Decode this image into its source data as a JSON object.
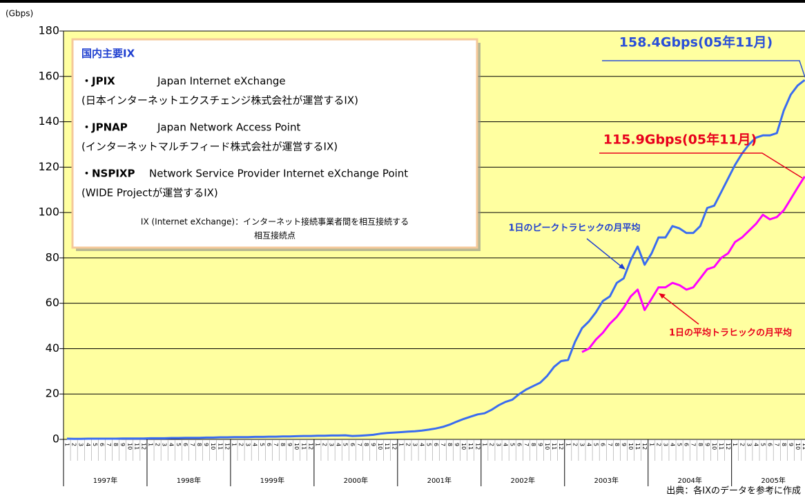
{
  "chart_data": {
    "type": "line",
    "unit_label": "(Gbps)",
    "categories": [
      "1",
      "2",
      "3",
      "4",
      "5",
      "6",
      "7",
      "8",
      "9",
      "10",
      "11",
      "12",
      "1",
      "2",
      "3",
      "4",
      "5",
      "6",
      "7",
      "8",
      "9",
      "10",
      "11",
      "12",
      "1",
      "2",
      "3",
      "4",
      "5",
      "6",
      "7",
      "8",
      "9",
      "10",
      "11",
      "12",
      "1",
      "2",
      "3",
      "4",
      "5",
      "6",
      "7",
      "8",
      "9",
      "10",
      "11",
      "12",
      "1",
      "2",
      "3",
      "4",
      "5",
      "6",
      "7",
      "8",
      "9",
      "10",
      "11",
      "12",
      "1",
      "2",
      "3",
      "4",
      "5",
      "6",
      "7",
      "8",
      "9",
      "10",
      "11",
      "12",
      "1",
      "2",
      "3",
      "4",
      "5",
      "6",
      "7",
      "8",
      "9",
      "10",
      "11",
      "12",
      "1",
      "2",
      "3",
      "4",
      "5",
      "6",
      "7",
      "8",
      "9",
      "10",
      "11",
      "12",
      "1",
      "2",
      "3",
      "4",
      "5",
      "6",
      "7",
      "8",
      "9",
      "10",
      "11"
    ],
    "years": [
      "1997年",
      "1998年",
      "1999年",
      "2000年",
      "2001年",
      "2002年",
      "2003年",
      "2004年",
      "2005年"
    ],
    "series": [
      {
        "name": "1日のピークトラヒックの月平均",
        "color": "#3a6cf0",
        "values": [
          0.3,
          0.2,
          0.2,
          0.3,
          0.3,
          0.3,
          0.3,
          0.3,
          0.4,
          0.4,
          0.4,
          0.4,
          0.5,
          0.5,
          0.5,
          0.6,
          0.6,
          0.7,
          0.7,
          0.7,
          0.8,
          0.8,
          0.9,
          0.9,
          1.0,
          1.0,
          1.0,
          1.1,
          1.1,
          1.2,
          1.2,
          1.3,
          1.3,
          1.4,
          1.5,
          1.5,
          1.6,
          1.6,
          1.7,
          1.7,
          1.8,
          1.5,
          1.6,
          1.8,
          2.0,
          2.5,
          2.8,
          3.0,
          3.2,
          3.4,
          3.6,
          3.9,
          4.3,
          4.8,
          5.5,
          6.5,
          7.8,
          9.0,
          10.0,
          11.0,
          11.5,
          13,
          15,
          16.5,
          17.5,
          20,
          22,
          23.5,
          25,
          28,
          32,
          34.5,
          35,
          43,
          49,
          52,
          56,
          61,
          63,
          69,
          71,
          79,
          85,
          77,
          82,
          89,
          89,
          94,
          93,
          91,
          91,
          94,
          102,
          103,
          109,
          115,
          121,
          126,
          130,
          133,
          134,
          134,
          135,
          145,
          152,
          156,
          158.4
        ]
      },
      {
        "name": "1日の平均トラヒックの月平均",
        "color": "#ff00ff",
        "values": [
          null,
          null,
          null,
          null,
          null,
          null,
          null,
          null,
          null,
          null,
          null,
          null,
          null,
          null,
          null,
          null,
          null,
          null,
          null,
          null,
          null,
          null,
          null,
          null,
          null,
          null,
          null,
          null,
          null,
          null,
          null,
          null,
          null,
          null,
          null,
          null,
          null,
          null,
          null,
          null,
          null,
          null,
          null,
          null,
          null,
          null,
          null,
          null,
          null,
          null,
          null,
          null,
          null,
          null,
          null,
          null,
          null,
          null,
          null,
          null,
          null,
          null,
          null,
          null,
          null,
          null,
          null,
          null,
          null,
          null,
          null,
          null,
          null,
          null,
          38.5,
          40,
          44,
          47,
          51,
          54,
          58,
          63,
          66,
          57,
          62,
          67,
          67,
          69,
          68,
          66,
          67,
          71,
          75,
          76,
          80,
          82,
          87,
          89,
          92,
          95,
          99,
          97,
          98,
          101,
          106,
          111,
          115.9
        ]
      }
    ],
    "annotations": [
      "158.4Gbps(05年11月)",
      "115.9Gbps(05年11月)"
    ],
    "ylim": [
      0,
      180
    ],
    "yticks": [
      0,
      20,
      40,
      60,
      80,
      100,
      120,
      140,
      160,
      180
    ],
    "grid": true,
    "plot_color": "#ffffa0",
    "source": "出典：各IXのデータを参考に作成"
  },
  "info_box": {
    "title": "国内主要IX",
    "items": [
      {
        "abbr": "・JPIX",
        "name": "Japan Internet eXchange",
        "operator": "(日本インターネットエクスチェンジ株式会社が運営するIX)"
      },
      {
        "abbr": "・JPNAP",
        "name": "Japan Network Access Point",
        "operator": "(インターネットマルチフィード株式会社が運営するIX)"
      },
      {
        "abbr": "・NSPIXP",
        "name": "Network Service Provider Internet eXchange Point",
        "operator": "(WIDE Projectが運営するIX)"
      }
    ],
    "note": [
      "IX (Internet eXchange)：インターネット接続事業者間を相互接続する",
      "相互接続点"
    ]
  }
}
